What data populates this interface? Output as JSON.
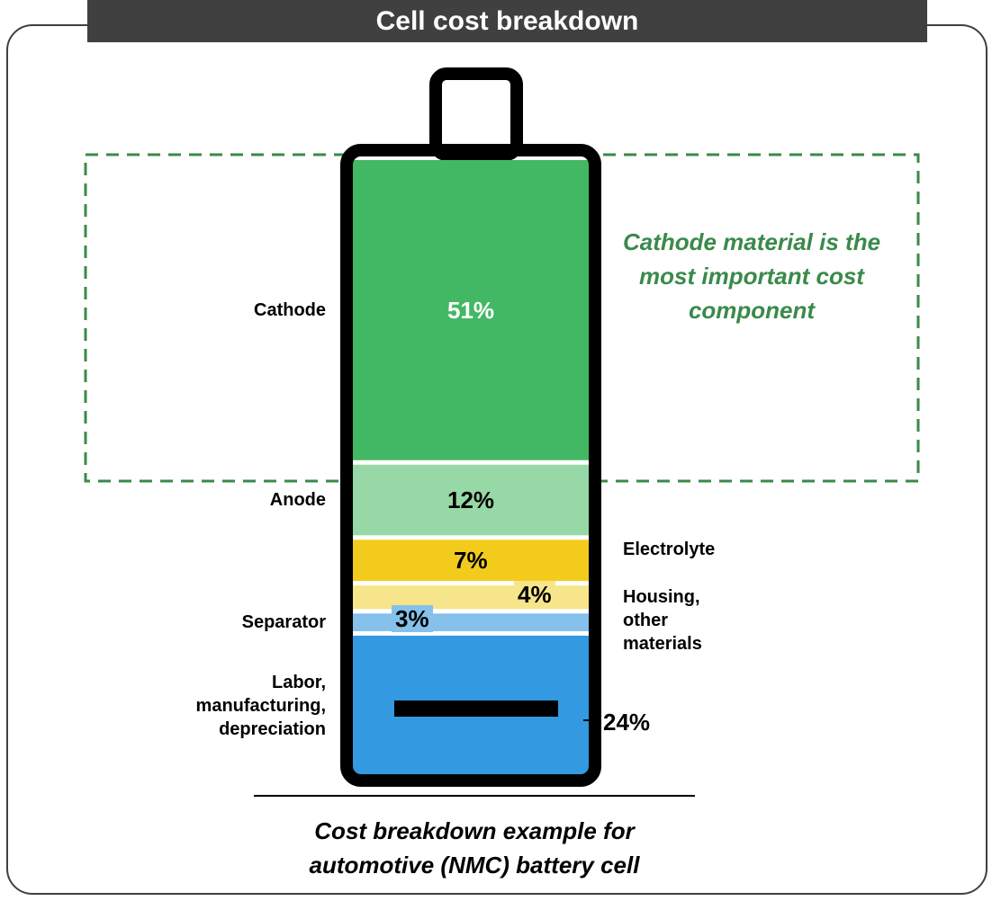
{
  "chart_data": {
    "type": "bar",
    "title": "Cell cost breakdown",
    "annotation": "Cathode material is the most important cost component",
    "caption": "Cost breakdown example for automotive (NMC) battery cell",
    "series": [
      {
        "name": "Cathode",
        "color": "#43b864",
        "values": [
          51
        ],
        "value_labels": [
          "51%"
        ]
      },
      {
        "name": "Anode",
        "color": "#97d9a6",
        "values": [
          12
        ],
        "value_labels": [
          "12%"
        ]
      },
      {
        "name": "Electrolyte",
        "color": "#f2cb1d",
        "values": [
          7
        ],
        "value_labels": [
          "7%"
        ]
      },
      {
        "name": "Housing, other materials",
        "color": "#f7e58c",
        "values": [
          4
        ],
        "value_labels": [
          "4%"
        ]
      },
      {
        "name": "Separator",
        "color": "#85c1ea",
        "values": [
          3
        ],
        "value_labels": [
          "3%"
        ]
      },
      {
        "name": "Labor, manufacturing, depreciation",
        "color": "#3399e0",
        "values": [
          24
        ],
        "value_labels": [
          "24%"
        ]
      }
    ]
  }
}
